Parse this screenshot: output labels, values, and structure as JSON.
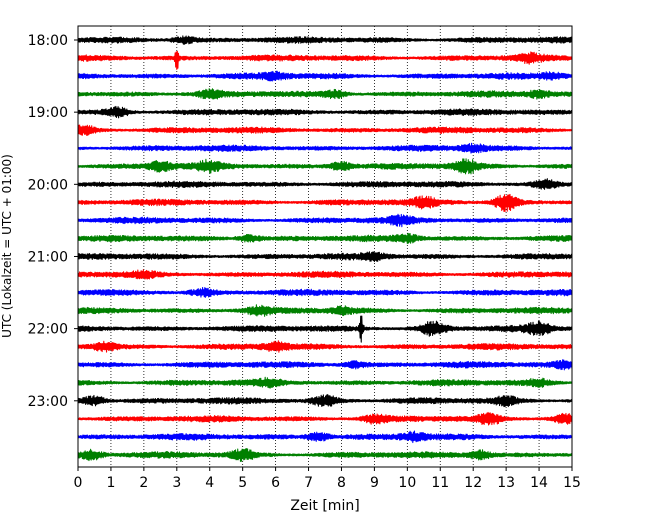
{
  "chart_data": {
    "type": "line",
    "title": "",
    "xlabel": "Zeit  [min]",
    "ylabel": "UTC (Lokalzeit = UTC + 01:00)",
    "xlim": [
      0,
      15
    ],
    "x_ticks": [
      "0",
      "1",
      "2",
      "3",
      "4",
      "5",
      "6",
      "7",
      "8",
      "9",
      "10",
      "11",
      "12",
      "13",
      "14",
      "15"
    ],
    "y_tick_labels": [
      "18:00",
      "19:00",
      "20:00",
      "21:00",
      "22:00",
      "23:00"
    ],
    "grid": "vertical dotted",
    "legend": "none",
    "trace_colors": [
      "#000000",
      "#ff0000",
      "#0000ff",
      "#008000"
    ],
    "traces": [
      {
        "start": "18:00",
        "color": "#000000",
        "events": [
          {
            "t": 3.2,
            "amp": 0.3
          }
        ]
      },
      {
        "start": "18:15",
        "color": "#ff0000",
        "events": [
          {
            "t": 3.0,
            "amp": 1.4
          },
          {
            "t": 13.7,
            "amp": 0.35
          }
        ]
      },
      {
        "start": "18:30",
        "color": "#0000ff",
        "events": [
          {
            "t": 6.0,
            "amp": 0.3
          },
          {
            "t": 14.4,
            "amp": 0.3
          }
        ]
      },
      {
        "start": "18:45",
        "color": "#008000",
        "events": [
          {
            "t": 4.0,
            "amp": 0.35
          },
          {
            "t": 7.8,
            "amp": 0.35
          },
          {
            "t": 14.0,
            "amp": 0.35
          }
        ]
      },
      {
        "start": "19:00",
        "color": "#000000",
        "events": [
          {
            "t": 1.2,
            "amp": 0.45
          }
        ]
      },
      {
        "start": "19:15",
        "color": "#ff0000",
        "events": [
          {
            "t": 0.2,
            "amp": 0.4
          }
        ]
      },
      {
        "start": "19:30",
        "color": "#0000ff",
        "events": [
          {
            "t": 12.0,
            "amp": 0.3
          }
        ]
      },
      {
        "start": "19:45",
        "color": "#008000",
        "events": [
          {
            "t": 2.5,
            "amp": 0.45
          },
          {
            "t": 4.0,
            "amp": 0.45
          },
          {
            "t": 8.0,
            "amp": 0.45
          },
          {
            "t": 11.8,
            "amp": 0.6
          }
        ]
      },
      {
        "start": "20:00",
        "color": "#000000",
        "events": [
          {
            "t": 14.2,
            "amp": 0.4
          }
        ]
      },
      {
        "start": "20:15",
        "color": "#ff0000",
        "events": [
          {
            "t": 10.5,
            "amp": 0.45
          },
          {
            "t": 13.0,
            "amp": 0.85
          }
        ]
      },
      {
        "start": "20:30",
        "color": "#0000ff",
        "events": [
          {
            "t": 9.8,
            "amp": 0.35
          }
        ]
      },
      {
        "start": "20:45",
        "color": "#008000",
        "events": [
          {
            "t": 5.2,
            "amp": 0.35
          },
          {
            "t": 10.0,
            "amp": 0.35
          }
        ]
      },
      {
        "start": "21:00",
        "color": "#000000",
        "events": [
          {
            "t": 9.0,
            "amp": 0.3
          }
        ]
      },
      {
        "start": "21:15",
        "color": "#ff0000",
        "events": [
          {
            "t": 2.0,
            "amp": 0.25
          }
        ]
      },
      {
        "start": "21:30",
        "color": "#0000ff",
        "events": [
          {
            "t": 3.8,
            "amp": 0.35
          }
        ]
      },
      {
        "start": "21:45",
        "color": "#008000",
        "events": [
          {
            "t": 5.5,
            "amp": 0.4
          },
          {
            "t": 8.0,
            "amp": 0.3
          }
        ]
      },
      {
        "start": "22:00",
        "color": "#000000",
        "events": [
          {
            "t": 8.6,
            "amp": 1.3
          },
          {
            "t": 10.8,
            "amp": 0.7
          },
          {
            "t": 14.0,
            "amp": 0.55
          }
        ]
      },
      {
        "start": "22:15",
        "color": "#ff0000",
        "events": [
          {
            "t": 0.8,
            "amp": 0.45
          },
          {
            "t": 6.0,
            "amp": 0.4
          }
        ]
      },
      {
        "start": "22:30",
        "color": "#0000ff",
        "events": [
          {
            "t": 8.4,
            "amp": 0.3
          },
          {
            "t": 14.8,
            "amp": 0.35
          }
        ]
      },
      {
        "start": "22:45",
        "color": "#008000",
        "events": [
          {
            "t": 5.8,
            "amp": 0.3
          },
          {
            "t": 14.0,
            "amp": 0.3
          }
        ]
      },
      {
        "start": "23:00",
        "color": "#000000",
        "events": [
          {
            "t": 0.5,
            "amp": 0.5
          },
          {
            "t": 7.5,
            "amp": 0.55
          },
          {
            "t": 13.0,
            "amp": 0.35
          }
        ]
      },
      {
        "start": "23:15",
        "color": "#ff0000",
        "events": [
          {
            "t": 9.0,
            "amp": 0.4
          },
          {
            "t": 12.5,
            "amp": 0.5
          },
          {
            "t": 14.8,
            "amp": 0.45
          }
        ]
      },
      {
        "start": "23:30",
        "color": "#0000ff",
        "events": [
          {
            "t": 7.3,
            "amp": 0.45
          },
          {
            "t": 10.2,
            "amp": 0.4
          }
        ]
      },
      {
        "start": "23:45",
        "color": "#008000",
        "events": [
          {
            "t": 0.4,
            "amp": 0.45
          },
          {
            "t": 5.0,
            "amp": 0.5
          },
          {
            "t": 12.2,
            "amp": 0.45
          }
        ]
      }
    ]
  }
}
